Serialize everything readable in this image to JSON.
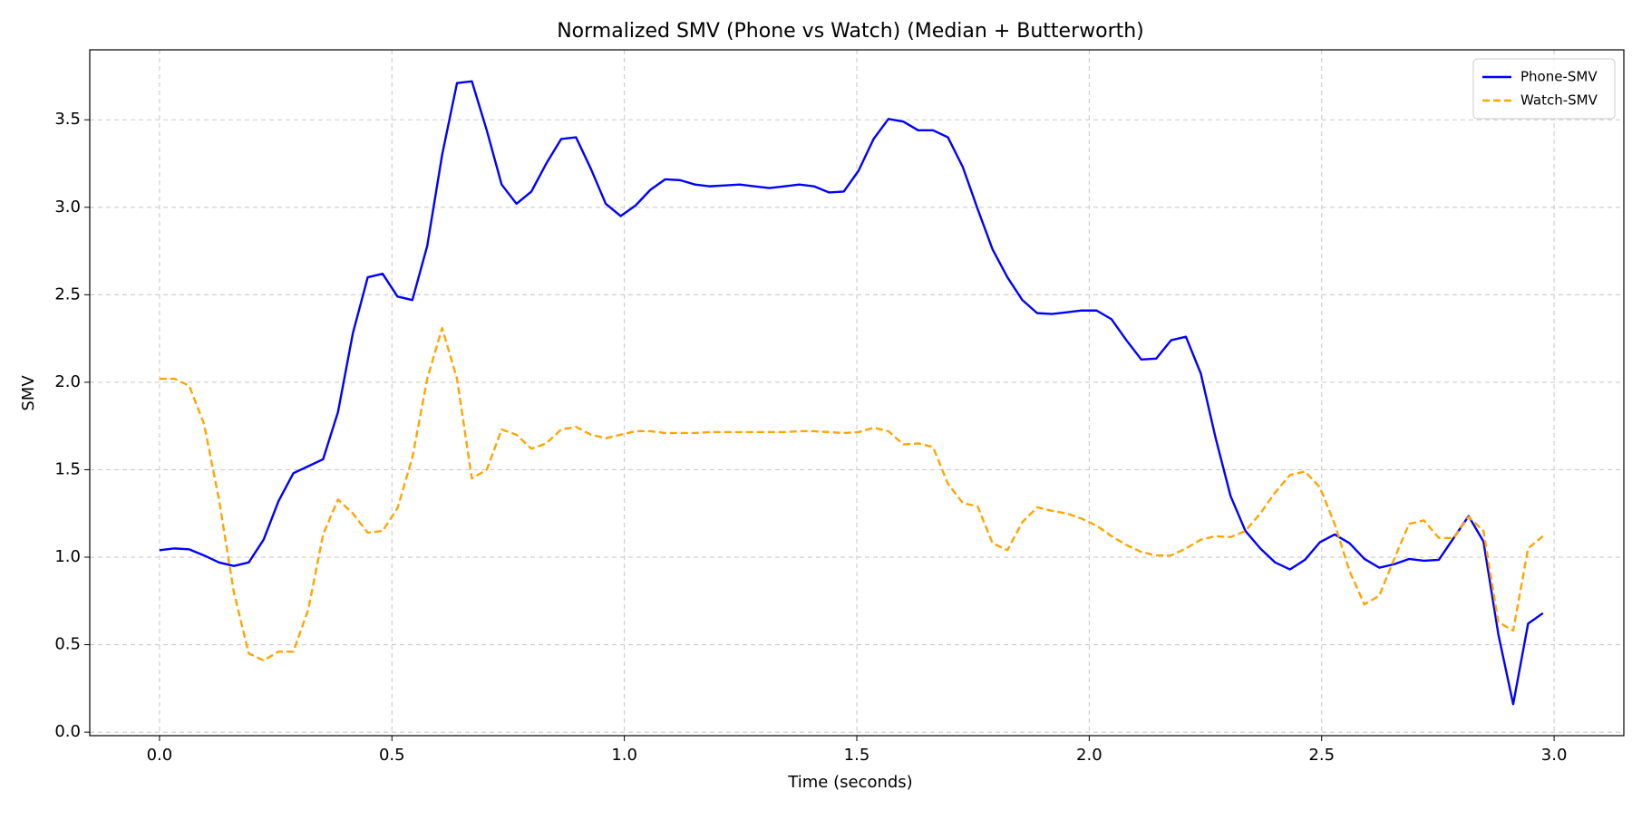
{
  "chart_data": {
    "type": "line",
    "title": "Normalized SMV (Phone vs Watch) (Median + Butterworth)",
    "x_label": "Time (seconds)",
    "y_label": "SMV",
    "x": [
      0,
      0.032,
      0.064,
      0.096,
      0.128,
      0.16,
      0.192,
      0.224,
      0.256,
      0.288,
      0.32,
      0.352,
      0.384,
      0.416,
      0.448,
      0.48,
      0.512,
      0.544,
      0.576,
      0.608,
      0.64,
      0.672,
      0.704,
      0.736,
      0.768,
      0.8,
      0.832,
      0.864,
      0.896,
      0.928,
      0.96,
      0.992,
      1.024,
      1.056,
      1.088,
      1.12,
      1.152,
      1.184,
      1.216,
      1.248,
      1.28,
      1.312,
      1.344,
      1.376,
      1.408,
      1.44,
      1.472,
      1.504,
      1.536,
      1.568,
      1.6,
      1.632,
      1.664,
      1.696,
      1.728,
      1.76,
      1.792,
      1.824,
      1.856,
      1.888,
      1.92,
      1.952,
      1.984,
      2.016,
      2.048,
      2.08,
      2.112,
      2.144,
      2.176,
      2.208,
      2.24,
      2.272,
      2.304,
      2.336,
      2.368,
      2.4,
      2.432,
      2.464,
      2.496,
      2.528,
      2.56,
      2.592,
      2.624,
      2.656,
      2.688,
      2.72,
      2.752,
      2.784,
      2.816,
      2.848,
      2.88,
      2.912,
      2.944,
      2.976
    ],
    "series": [
      {
        "name": "Phone-SMV",
        "color": "#0000ff",
        "dash": false,
        "values": [
          1.04,
          1.05,
          1.045,
          1.01,
          0.97,
          0.95,
          0.97,
          1.1,
          1.32,
          1.48,
          1.52,
          1.56,
          1.83,
          2.28,
          2.6,
          2.62,
          2.49,
          2.47,
          2.78,
          3.3,
          3.71,
          3.72,
          3.44,
          3.13,
          3.02,
          3.09,
          3.25,
          3.39,
          3.4,
          3.22,
          3.02,
          2.95,
          3.01,
          3.1,
          3.16,
          3.155,
          3.13,
          3.12,
          3.125,
          3.13,
          3.12,
          3.11,
          3.12,
          3.13,
          3.12,
          3.085,
          3.09,
          3.21,
          3.39,
          3.505,
          3.49,
          3.44,
          3.44,
          3.4,
          3.23,
          2.99,
          2.76,
          2.6,
          2.47,
          2.395,
          2.39,
          2.4,
          2.41,
          2.41,
          2.36,
          2.24,
          2.13,
          2.135,
          2.24,
          2.26,
          2.05,
          1.68,
          1.35,
          1.15,
          1.05,
          0.97,
          0.93,
          0.985,
          1.085,
          1.13,
          1.08,
          0.99,
          0.94,
          0.96,
          0.99,
          0.98,
          0.985,
          1.11,
          1.235,
          1.09,
          0.56,
          0.16,
          0.62,
          0.68
        ]
      },
      {
        "name": "Watch-SMV",
        "color": "#ffa500",
        "dash": true,
        "values": [
          2.02,
          2.02,
          1.98,
          1.76,
          1.33,
          0.8,
          0.45,
          0.41,
          0.46,
          0.46,
          0.7,
          1.13,
          1.33,
          1.25,
          1.14,
          1.15,
          1.28,
          1.57,
          2.02,
          2.31,
          2.02,
          1.45,
          1.5,
          1.73,
          1.7,
          1.62,
          1.65,
          1.73,
          1.745,
          1.7,
          1.68,
          1.7,
          1.72,
          1.72,
          1.71,
          1.71,
          1.71,
          1.715,
          1.715,
          1.715,
          1.715,
          1.715,
          1.715,
          1.72,
          1.72,
          1.715,
          1.71,
          1.715,
          1.74,
          1.72,
          1.645,
          1.65,
          1.63,
          1.42,
          1.31,
          1.29,
          1.08,
          1.04,
          1.2,
          1.285,
          1.265,
          1.25,
          1.22,
          1.18,
          1.12,
          1.07,
          1.03,
          1.01,
          1.01,
          1.05,
          1.1,
          1.12,
          1.115,
          1.15,
          1.25,
          1.37,
          1.47,
          1.49,
          1.4,
          1.19,
          0.92,
          0.73,
          0.78,
          0.99,
          1.19,
          1.21,
          1.11,
          1.11,
          1.23,
          1.15,
          0.63,
          0.58,
          1.05,
          1.12
        ]
      }
    ],
    "xlim": [
      -0.15,
      3.15
    ],
    "ylim": [
      -0.02,
      3.9
    ],
    "xticks": [
      {
        "value": 0,
        "label": "0.0"
      },
      {
        "value": 0.5,
        "label": "0.5"
      },
      {
        "value": 1,
        "label": "1.0"
      },
      {
        "value": 1.5,
        "label": "1.5"
      },
      {
        "value": 2,
        "label": "2.0"
      },
      {
        "value": 2.5,
        "label": "2.5"
      },
      {
        "value": 3,
        "label": "3.0"
      }
    ],
    "yticks": [
      {
        "value": 0,
        "label": "0.0"
      },
      {
        "value": 0.5,
        "label": "0.5"
      },
      {
        "value": 1,
        "label": "1.0"
      },
      {
        "value": 1.5,
        "label": "1.5"
      },
      {
        "value": 2,
        "label": "2.0"
      },
      {
        "value": 2.5,
        "label": "2.5"
      },
      {
        "value": 3,
        "label": "3.0"
      },
      {
        "value": 3.5,
        "label": "3.5"
      }
    ],
    "grid": true,
    "legend": "upper right"
  }
}
